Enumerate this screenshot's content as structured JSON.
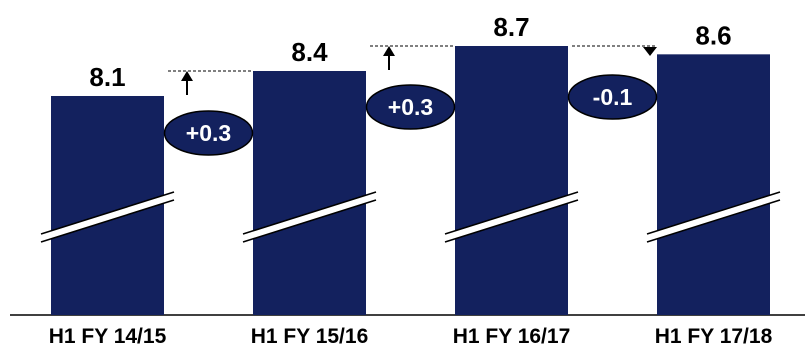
{
  "chart_data": {
    "type": "bar",
    "categories": [
      "H1 FY 14/15",
      "H1 FY 15/16",
      "H1 FY 16/17",
      "H1 FY 17/18"
    ],
    "values": [
      8.1,
      8.4,
      8.7,
      8.6
    ],
    "value_labels": [
      "8.1",
      "8.4",
      "8.7",
      "8.6"
    ],
    "deltas": [
      {
        "label": "+0.3",
        "direction": "up"
      },
      {
        "label": "+0.3",
        "direction": "up"
      },
      {
        "label": "-0.1",
        "direction": "down"
      }
    ],
    "axis_break": true,
    "bar_color": "#13215e",
    "title": "",
    "xlabel": "",
    "ylabel": ""
  }
}
